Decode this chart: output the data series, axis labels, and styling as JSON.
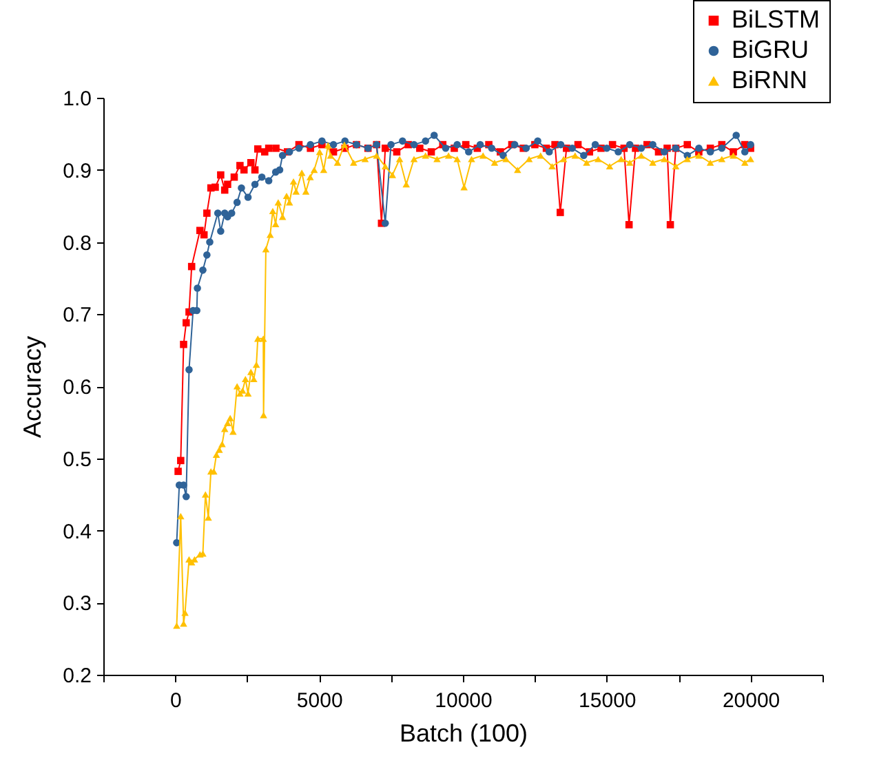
{
  "chart_data": {
    "type": "line",
    "xlabel": "Batch (100)",
    "ylabel": "Accuracy",
    "xlim": [
      -2500,
      22500
    ],
    "xticks": [
      {
        "value": -2500,
        "label": null
      },
      0,
      {
        "value": 2500,
        "label": null
      },
      5000,
      {
        "value": 7500,
        "label": null
      },
      10000,
      {
        "value": 12500,
        "label": null
      },
      15000,
      {
        "value": 17500,
        "label": null
      },
      20000,
      {
        "value": 22500,
        "label": null
      }
    ],
    "ylim": [
      0.2,
      1.0
    ],
    "yticks": [
      0.2,
      0.3,
      0.4,
      0.5,
      0.6,
      0.7,
      0.8,
      0.9,
      {
        "value": 1.0,
        "label": "1.0"
      }
    ],
    "grid": false,
    "legend": "top right",
    "series": [
      {
        "name": "BiLSTM",
        "color": "#ff0000",
        "marker": "square",
        "x": [
          100,
          190,
          290,
          380,
          480,
          570,
          860,
          1000,
          1100,
          1240,
          1390,
          1580,
          1720,
          1820,
          2050,
          2250,
          2390,
          2630,
          2770,
          2870,
          3110,
          3250,
          3500,
          3900,
          4300,
          4700,
          5100,
          5500,
          5900,
          6300,
          6700,
          7000,
          7170,
          7300,
          7700,
          8100,
          8500,
          8900,
          9300,
          9700,
          10100,
          10500,
          10900,
          11300,
          11700,
          12100,
          12500,
          12900,
          13200,
          13384,
          13600,
          14000,
          14400,
          14800,
          15200,
          15600,
          15775,
          16000,
          16400,
          16800,
          17100,
          17210,
          17400,
          17800,
          18200,
          18600,
          19000,
          19400,
          19800,
          20000
        ],
        "values": [
          0.482,
          0.497,
          0.658,
          0.688,
          0.703,
          0.766,
          0.816,
          0.81,
          0.84,
          0.875,
          0.876,
          0.893,
          0.872,
          0.88,
          0.89,
          0.906,
          0.9,
          0.91,
          0.9,
          0.929,
          0.925,
          0.93,
          0.93,
          0.925,
          0.935,
          0.93,
          0.935,
          0.925,
          0.93,
          0.935,
          0.93,
          0.935,
          0.826,
          0.93,
          0.925,
          0.935,
          0.93,
          0.925,
          0.935,
          0.93,
          0.935,
          0.93,
          0.935,
          0.925,
          0.935,
          0.93,
          0.935,
          0.93,
          0.935,
          0.841,
          0.93,
          0.935,
          0.925,
          0.93,
          0.935,
          0.93,
          0.824,
          0.93,
          0.935,
          0.925,
          0.93,
          0.824,
          0.93,
          0.935,
          0.925,
          0.93,
          0.935,
          0.925,
          0.935,
          0.93
        ]
      },
      {
        "name": "BiGRU",
        "color": "#2f6398",
        "marker": "circle",
        "x": [
          50,
          140,
          290,
          380,
          480,
          620,
          750,
          770,
          960,
          1100,
          1200,
          1480,
          1580,
          1720,
          1820,
          1960,
          2150,
          2300,
          2530,
          2770,
          3010,
          3250,
          3490,
          3630,
          3730,
          3970,
          4300,
          4700,
          5100,
          5500,
          5900,
          6300,
          6700,
          7000,
          7300,
          7500,
          7900,
          8300,
          8700,
          9000,
          9400,
          9800,
          10200,
          10600,
          11000,
          11400,
          11800,
          12200,
          12600,
          13000,
          13400,
          13800,
          14200,
          14600,
          15000,
          15400,
          15800,
          16200,
          16600,
          17000,
          17400,
          17800,
          18200,
          18600,
          19000,
          19500,
          19800,
          20000
        ],
        "values": [
          0.383,
          0.463,
          0.463,
          0.447,
          0.623,
          0.705,
          0.705,
          0.736,
          0.761,
          0.782,
          0.8,
          0.84,
          0.815,
          0.84,
          0.835,
          0.84,
          0.855,
          0.875,
          0.862,
          0.88,
          0.89,
          0.885,
          0.897,
          0.9,
          0.92,
          0.925,
          0.93,
          0.935,
          0.94,
          0.935,
          0.94,
          0.935,
          0.93,
          0.935,
          0.826,
          0.935,
          0.94,
          0.935,
          0.94,
          0.948,
          0.93,
          0.935,
          0.925,
          0.935,
          0.93,
          0.92,
          0.935,
          0.93,
          0.94,
          0.925,
          0.935,
          0.93,
          0.92,
          0.935,
          0.93,
          0.925,
          0.935,
          0.93,
          0.935,
          0.925,
          0.93,
          0.92,
          0.93,
          0.925,
          0.93,
          0.948,
          0.925,
          0.935
        ]
      },
      {
        "name": "BiRNN",
        "color": "#ffc000",
        "marker": "triangle",
        "x": [
          50,
          190,
          290,
          340,
          480,
          570,
          670,
          860,
          960,
          1050,
          1150,
          1240,
          1340,
          1430,
          1530,
          1630,
          1720,
          1820,
          1910,
          2010,
          2150,
          2250,
          2340,
          2440,
          2530,
          2630,
          2730,
          2820,
          2870,
          3060,
          3070,
          3150,
          3300,
          3390,
          3490,
          3580,
          3730,
          3870,
          3970,
          4110,
          4200,
          4400,
          4540,
          4690,
          4830,
          5020,
          5160,
          5310,
          5400,
          5640,
          5880,
          6200,
          6600,
          7000,
          7300,
          7550,
          7800,
          8030,
          8300,
          8700,
          9100,
          9500,
          9800,
          10040,
          10300,
          10700,
          11100,
          11500,
          11900,
          12300,
          12700,
          13100,
          13500,
          13900,
          14300,
          14700,
          15100,
          15500,
          15800,
          16200,
          16600,
          17000,
          17400,
          17800,
          18200,
          18600,
          19000,
          19400,
          19800,
          20000
        ],
        "values": [
          0.268,
          0.42,
          0.271,
          0.286,
          0.36,
          0.356,
          0.36,
          0.367,
          0.368,
          0.45,
          0.418,
          0.482,
          0.482,
          0.505,
          0.512,
          0.52,
          0.541,
          0.549,
          0.556,
          0.537,
          0.6,
          0.59,
          0.594,
          0.61,
          0.59,
          0.62,
          0.61,
          0.63,
          0.666,
          0.666,
          0.56,
          0.79,
          0.81,
          0.843,
          0.825,
          0.855,
          0.835,
          0.864,
          0.855,
          0.884,
          0.87,
          0.896,
          0.87,
          0.89,
          0.9,
          0.925,
          0.9,
          0.934,
          0.92,
          0.91,
          0.935,
          0.91,
          0.915,
          0.92,
          0.905,
          0.893,
          0.915,
          0.88,
          0.915,
          0.92,
          0.915,
          0.92,
          0.915,
          0.876,
          0.915,
          0.92,
          0.91,
          0.915,
          0.9,
          0.915,
          0.92,
          0.905,
          0.915,
          0.92,
          0.91,
          0.915,
          0.905,
          0.915,
          0.91,
          0.92,
          0.91,
          0.915,
          0.905,
          0.915,
          0.92,
          0.91,
          0.915,
          0.92,
          0.91,
          0.915
        ]
      }
    ]
  }
}
